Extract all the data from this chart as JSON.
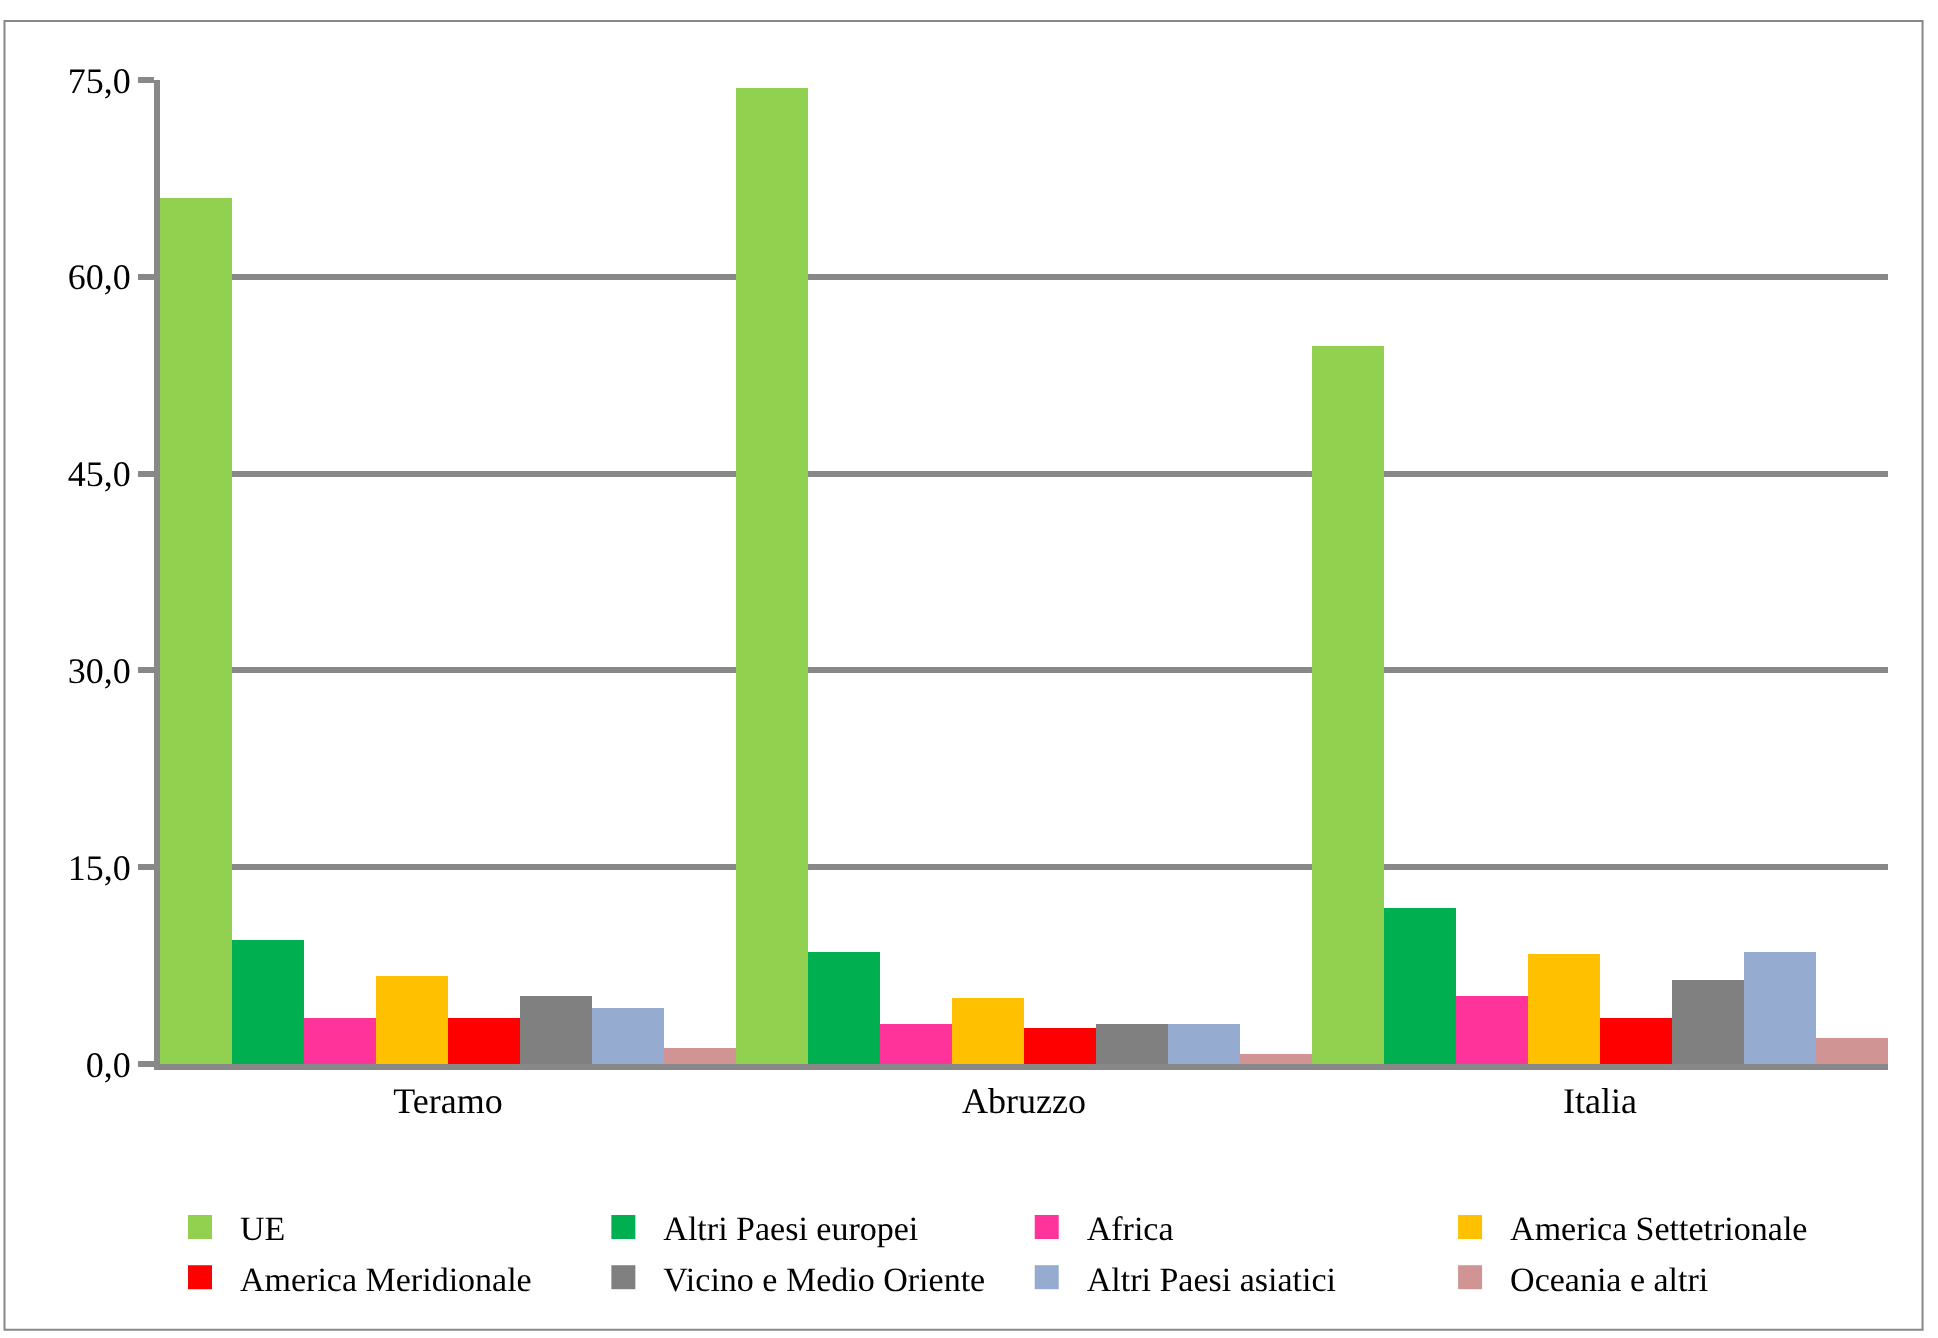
{
  "chart_data": {
    "type": "bar",
    "categories": [
      "Teramo",
      "Abruzzo",
      "Italia"
    ],
    "series": [
      {
        "name": "UE",
        "color": "#92d050",
        "values": [
          66.0,
          74.4,
          54.7
        ]
      },
      {
        "name": "Altri Paesi europei",
        "color": "#00b050",
        "values": [
          9.5,
          8.5,
          11.9
        ]
      },
      {
        "name": "Africa",
        "color": "#ff3399",
        "values": [
          3.5,
          3.0,
          5.2
        ]
      },
      {
        "name": "America Settetrionale",
        "color": "#ffc000",
        "values": [
          6.7,
          5.0,
          8.4
        ]
      },
      {
        "name": "America Meridionale",
        "color": "#ff0000",
        "values": [
          3.5,
          2.7,
          3.5
        ]
      },
      {
        "name": "Vicino e Medio Oriente",
        "color": "#808080",
        "values": [
          5.2,
          3.0,
          6.4
        ]
      },
      {
        "name": "Altri Paesi asiatici",
        "color": "#95abd0",
        "values": [
          4.3,
          3.0,
          8.5
        ]
      },
      {
        "name": "Oceania e altri",
        "color": "#d09494",
        "values": [
          1.2,
          0.7,
          2.0
        ]
      }
    ],
    "ylim": [
      0,
      75
    ],
    "yticks": [
      {
        "value": 0,
        "label": "0,0"
      },
      {
        "value": 15,
        "label": "15,0"
      },
      {
        "value": 30,
        "label": "30,0"
      },
      {
        "value": 45,
        "label": "45,0"
      },
      {
        "value": 60,
        "label": "60,0"
      },
      {
        "value": 75,
        "label": "75,0"
      }
    ],
    "grid": "y",
    "legend": "bottom"
  }
}
